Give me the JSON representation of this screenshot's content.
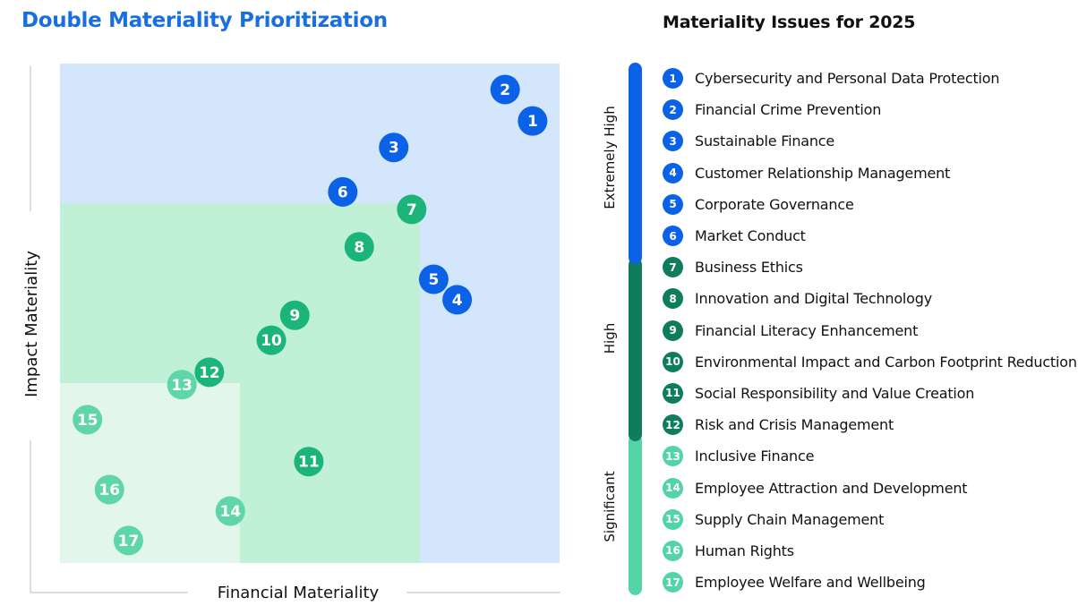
{
  "title": "Double Materiality Prioritization",
  "list_title": "Materiality Issues for 2025",
  "colors": {
    "title": "#1a6fe0",
    "extremely_high": "#0b62e6",
    "high": "#0f7d5c",
    "significant": "#52d4a6",
    "bubble_extremely_high": "#0b62e6",
    "bubble_high": "#1bb579",
    "bubble_significant": "#5ed6a8",
    "zone_extremely_high": "#d4e6fc",
    "zone_high": "#c0f0d6",
    "zone_significant": "#e3f6ec"
  },
  "levels": [
    {
      "key": "extremely_high",
      "label": "Extremely High"
    },
    {
      "key": "high",
      "label": "High"
    },
    {
      "key": "significant",
      "label": "Significant"
    }
  ],
  "issues": [
    {
      "num": "1",
      "label": "Cybersecurity and Personal Data Protection",
      "level": "extremely_high"
    },
    {
      "num": "2",
      "label": "Financial Crime Prevention",
      "level": "extremely_high"
    },
    {
      "num": "3",
      "label": "Sustainable Finance",
      "level": "extremely_high"
    },
    {
      "num": "4",
      "label": "Customer Relationship Management",
      "level": "extremely_high"
    },
    {
      "num": "5",
      "label": "Corporate Governance",
      "level": "extremely_high"
    },
    {
      "num": "6",
      "label": "Market Conduct",
      "level": "extremely_high"
    },
    {
      "num": "7",
      "label": "Business Ethics",
      "level": "high"
    },
    {
      "num": "8",
      "label": "Innovation and Digital Technology",
      "level": "high"
    },
    {
      "num": "9",
      "label": "Financial Literacy Enhancement",
      "level": "high"
    },
    {
      "num": "10",
      "label": "Environmental Impact and Carbon Footprint Reduction",
      "level": "high"
    },
    {
      "num": "11",
      "label": "Social Responsibility and Value Creation",
      "level": "high"
    },
    {
      "num": "12",
      "label": "Risk and Crisis Management",
      "level": "high"
    },
    {
      "num": "13",
      "label": "Inclusive Finance",
      "level": "significant"
    },
    {
      "num": "14",
      "label": "Employee Attraction and Development",
      "level": "significant"
    },
    {
      "num": "15",
      "label": "Supply Chain Management",
      "level": "significant"
    },
    {
      "num": "16",
      "label": "Human Rights",
      "level": "significant"
    },
    {
      "num": "17",
      "label": "Employee Welfare and Wellbeing",
      "level": "significant"
    }
  ],
  "chart_data": {
    "type": "scatter",
    "title": "Double Materiality Prioritization",
    "xlabel": "Financial Materiality",
    "ylabel": "Impact Materiality",
    "xlim": [
      0,
      100
    ],
    "ylim": [
      0,
      100
    ],
    "grid": false,
    "zones": [
      {
        "level": "extremely_high",
        "x_max": 100,
        "y_max": 100
      },
      {
        "level": "high",
        "x_max": 72,
        "y_max": 72
      },
      {
        "level": "significant",
        "x_max": 36,
        "y_max": 36
      }
    ],
    "points": [
      {
        "label": "1",
        "x": 94.6,
        "y": 88.5,
        "level": "extremely_high"
      },
      {
        "label": "2",
        "x": 89.1,
        "y": 94.8,
        "level": "extremely_high"
      },
      {
        "label": "3",
        "x": 66.8,
        "y": 83.2,
        "level": "extremely_high"
      },
      {
        "label": "4",
        "x": 79.5,
        "y": 52.7,
        "level": "extremely_high"
      },
      {
        "label": "5",
        "x": 74.8,
        "y": 56.8,
        "level": "extremely_high"
      },
      {
        "label": "6",
        "x": 56.6,
        "y": 74.3,
        "level": "extremely_high"
      },
      {
        "label": "7",
        "x": 70.4,
        "y": 70.8,
        "level": "high"
      },
      {
        "label": "8",
        "x": 59.9,
        "y": 63.3,
        "level": "high"
      },
      {
        "label": "9",
        "x": 47.0,
        "y": 49.6,
        "level": "high"
      },
      {
        "label": "10",
        "x": 42.3,
        "y": 44.6,
        "level": "high"
      },
      {
        "label": "11",
        "x": 49.8,
        "y": 20.3,
        "level": "high"
      },
      {
        "label": "12",
        "x": 29.9,
        "y": 38.2,
        "level": "high"
      },
      {
        "label": "13",
        "x": 24.4,
        "y": 35.7,
        "level": "significant"
      },
      {
        "label": "14",
        "x": 34.1,
        "y": 10.4,
        "level": "significant"
      },
      {
        "label": "15",
        "x": 5.5,
        "y": 28.7,
        "level": "significant"
      },
      {
        "label": "16",
        "x": 9.9,
        "y": 14.7,
        "level": "significant"
      },
      {
        "label": "17",
        "x": 13.7,
        "y": 4.5,
        "level": "significant"
      }
    ]
  }
}
